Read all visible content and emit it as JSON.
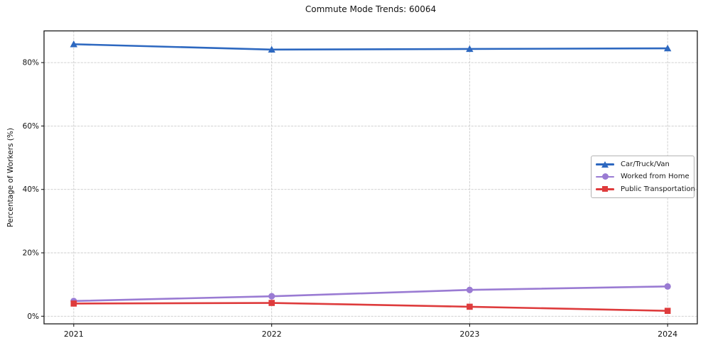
{
  "chart_data": {
    "type": "line",
    "title": "Commute Mode Trends: 60064",
    "xlabel": "",
    "ylabel": "Percentage of Workers (%)",
    "x": [
      2021,
      2022,
      2023,
      2024
    ],
    "x_tick_labels": [
      "2021",
      "2022",
      "2023",
      "2024"
    ],
    "y_ticks": [
      0,
      20,
      40,
      60,
      80
    ],
    "y_tick_labels": [
      "0%",
      "20%",
      "40%",
      "60%",
      "80%"
    ],
    "xlim": [
      2020.85,
      2024.15
    ],
    "ylim": [
      -2.4,
      90.0
    ],
    "grid": true,
    "grid_style": "dashed",
    "legend_position": "center-right",
    "background_color": "#ffffff",
    "grid_color": "#cccccc",
    "series": [
      {
        "name": "Car/Truck/Van",
        "color": "#2d68c0",
        "marker": "triangle",
        "values": [
          85.8,
          84.1,
          84.3,
          84.5
        ]
      },
      {
        "name": "Worked from Home",
        "color": "#9a7bd3",
        "marker": "circle",
        "values": [
          4.8,
          6.3,
          8.3,
          9.4
        ]
      },
      {
        "name": "Public Transportation",
        "color": "#de3b3c",
        "marker": "square",
        "values": [
          4.0,
          4.2,
          3.0,
          1.7
        ]
      }
    ]
  }
}
